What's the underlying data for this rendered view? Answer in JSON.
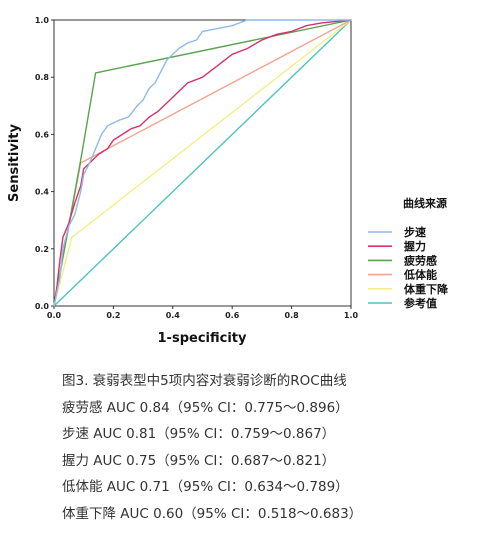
{
  "chart_data": {
    "type": "line",
    "xlabel": "1-specificity",
    "ylabel": "Sensitivity",
    "xlim": [
      0,
      1
    ],
    "ylim": [
      0,
      1
    ],
    "x_ticks": [
      "0.0",
      "0.2",
      "0.4",
      "0.6",
      "0.8",
      "1.0"
    ],
    "y_ticks": [
      "0.0",
      "0.2",
      "0.4",
      "0.6",
      "0.8",
      "1.0"
    ],
    "grid": false,
    "legend_title": "曲线来源",
    "legend_position": "right",
    "series": [
      {
        "name": "步速",
        "color": "#8fbbe8",
        "x": [
          0,
          0.02,
          0.03,
          0.05,
          0.07,
          0.09,
          0.1,
          0.12,
          0.14,
          0.16,
          0.18,
          0.2,
          0.22,
          0.25,
          0.28,
          0.3,
          0.32,
          0.34,
          0.36,
          0.38,
          0.4,
          0.42,
          0.45,
          0.48,
          0.5,
          0.55,
          0.6,
          0.65,
          0.7,
          0.8,
          1.0
        ],
        "y": [
          0,
          0.1,
          0.2,
          0.28,
          0.32,
          0.4,
          0.46,
          0.5,
          0.55,
          0.6,
          0.63,
          0.64,
          0.65,
          0.66,
          0.7,
          0.72,
          0.76,
          0.78,
          0.82,
          0.86,
          0.88,
          0.9,
          0.92,
          0.93,
          0.96,
          0.97,
          0.98,
          1.0,
          1.0,
          1.0,
          1.0
        ]
      },
      {
        "name": "握力",
        "color": "#d6336a",
        "x": [
          0,
          0.01,
          0.02,
          0.03,
          0.05,
          0.07,
          0.09,
          0.1,
          0.12,
          0.15,
          0.18,
          0.2,
          0.23,
          0.26,
          0.29,
          0.32,
          0.35,
          0.4,
          0.45,
          0.5,
          0.55,
          0.6,
          0.65,
          0.7,
          0.75,
          0.8,
          0.85,
          0.9,
          1.0
        ],
        "y": [
          0,
          0.07,
          0.16,
          0.24,
          0.29,
          0.36,
          0.42,
          0.48,
          0.5,
          0.53,
          0.55,
          0.58,
          0.6,
          0.62,
          0.63,
          0.66,
          0.68,
          0.73,
          0.78,
          0.8,
          0.84,
          0.88,
          0.9,
          0.93,
          0.95,
          0.96,
          0.98,
          0.99,
          1.0
        ]
      },
      {
        "name": "疲劳感",
        "color": "#5aa24f",
        "x": [
          0,
          0.09,
          0.14,
          1.0
        ],
        "y": [
          0,
          0.51,
          0.815,
          1.0
        ]
      },
      {
        "name": "低体能",
        "color": "#f4a590",
        "x": [
          0,
          0.09,
          1.0
        ],
        "y": [
          0,
          0.5,
          1.0
        ]
      },
      {
        "name": "体重下降",
        "color": "#f3ef86",
        "x": [
          0,
          0.06,
          1.0
        ],
        "y": [
          0,
          0.24,
          1.0
        ]
      },
      {
        "name": "参考值",
        "color": "#4fc3c0",
        "x": [
          0,
          1.0
        ],
        "y": [
          0,
          1.0
        ]
      }
    ]
  },
  "caption": {
    "title": "图3. 衰弱表型中5项内容对衰弱诊断的ROC曲线",
    "lines": [
      "疲劳感 AUC 0.84（95% CI：0.775～0.896）",
      "步速 AUC 0.81（95% CI：0.759～0.867）",
      "握力 AUC 0.75（95% CI：0.687～0.821）",
      "低体能 AUC 0.71（95% CI：0.634～0.789）",
      "体重下降 AUC 0.60（95% CI：0.518～0.683）"
    ]
  }
}
